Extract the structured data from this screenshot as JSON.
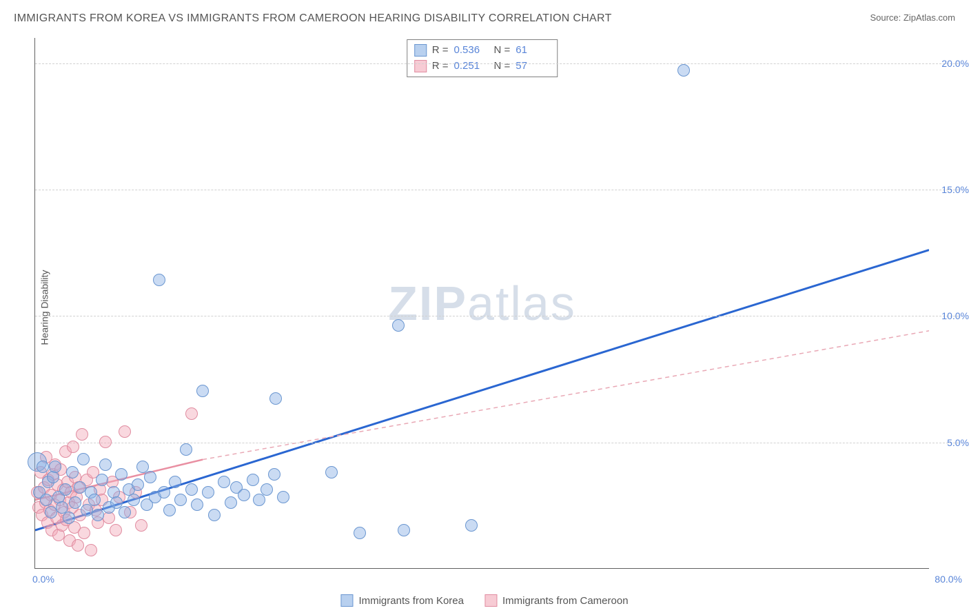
{
  "title": "IMMIGRANTS FROM KOREA VS IMMIGRANTS FROM CAMEROON HEARING DISABILITY CORRELATION CHART",
  "source_label": "Source: ",
  "source_value": "ZipAtlas.com",
  "ylabel": "Hearing Disability",
  "watermark_bold": "ZIP",
  "watermark_rest": "atlas",
  "chart": {
    "type": "scatter",
    "xlim": [
      0,
      80
    ],
    "ylim": [
      0,
      21
    ],
    "yticks": [
      5.0,
      10.0,
      15.0,
      20.0
    ],
    "ytick_labels": [
      "5.0%",
      "10.0%",
      "15.0%",
      "20.0%"
    ],
    "xtick_left": "0.0%",
    "xtick_right": "80.0%",
    "background_color": "#ffffff",
    "grid_color": "#d0d0d0",
    "colors": {
      "korea_fill": "rgba(137,176,229,0.45)",
      "korea_stroke": "#6a96d0",
      "cameroon_fill": "rgba(241,169,184,0.45)",
      "cameroon_stroke": "#e08ca0",
      "korea_line": "#2a66d1",
      "cameroon_line_solid": "#e98fa2",
      "cameroon_line_dash": "#e9a8b5",
      "tick_text": "#5985d8"
    },
    "marker_radius": 9,
    "series": {
      "korea": {
        "label": "Immigrants from Korea",
        "R": "0.536",
        "N": "61",
        "trend": {
          "x1": 0,
          "y1": 1.5,
          "x2": 80,
          "y2": 12.6
        },
        "points": [
          {
            "x": 0.2,
            "y": 4.2,
            "r": 14
          },
          {
            "x": 0.4,
            "y": 3.0
          },
          {
            "x": 0.7,
            "y": 4.0
          },
          {
            "x": 1.0,
            "y": 2.7
          },
          {
            "x": 1.2,
            "y": 3.4
          },
          {
            "x": 1.4,
            "y": 2.2
          },
          {
            "x": 1.6,
            "y": 3.6
          },
          {
            "x": 1.8,
            "y": 4.0
          },
          {
            "x": 2.1,
            "y": 2.8
          },
          {
            "x": 2.4,
            "y": 2.4
          },
          {
            "x": 2.7,
            "y": 3.1
          },
          {
            "x": 3.0,
            "y": 2.0
          },
          {
            "x": 3.3,
            "y": 3.8
          },
          {
            "x": 3.6,
            "y": 2.6
          },
          {
            "x": 4.0,
            "y": 3.2
          },
          {
            "x": 4.3,
            "y": 4.3
          },
          {
            "x": 4.6,
            "y": 2.3
          },
          {
            "x": 5.0,
            "y": 3.0
          },
          {
            "x": 5.3,
            "y": 2.7
          },
          {
            "x": 5.6,
            "y": 2.1
          },
          {
            "x": 6.0,
            "y": 3.5
          },
          {
            "x": 6.3,
            "y": 4.1
          },
          {
            "x": 6.6,
            "y": 2.4
          },
          {
            "x": 7.0,
            "y": 3.0
          },
          {
            "x": 7.3,
            "y": 2.6
          },
          {
            "x": 7.7,
            "y": 3.7
          },
          {
            "x": 8.0,
            "y": 2.2
          },
          {
            "x": 8.4,
            "y": 3.1
          },
          {
            "x": 8.8,
            "y": 2.7
          },
          {
            "x": 9.2,
            "y": 3.3
          },
          {
            "x": 9.6,
            "y": 4.0
          },
          {
            "x": 10.0,
            "y": 2.5
          },
          {
            "x": 10.3,
            "y": 3.6
          },
          {
            "x": 10.7,
            "y": 2.8
          },
          {
            "x": 11.1,
            "y": 11.4
          },
          {
            "x": 11.5,
            "y": 3.0
          },
          {
            "x": 12.0,
            "y": 2.3
          },
          {
            "x": 12.5,
            "y": 3.4
          },
          {
            "x": 13.0,
            "y": 2.7
          },
          {
            "x": 13.5,
            "y": 4.7
          },
          {
            "x": 14.0,
            "y": 3.1
          },
          {
            "x": 14.5,
            "y": 2.5
          },
          {
            "x": 15.0,
            "y": 7.0
          },
          {
            "x": 15.5,
            "y": 3.0
          },
          {
            "x": 16.9,
            "y": 3.4
          },
          {
            "x": 17.5,
            "y": 2.6
          },
          {
            "x": 18.0,
            "y": 3.2
          },
          {
            "x": 18.7,
            "y": 2.9
          },
          {
            "x": 19.5,
            "y": 3.5
          },
          {
            "x": 20.0,
            "y": 2.7
          },
          {
            "x": 20.7,
            "y": 3.1
          },
          {
            "x": 21.4,
            "y": 3.7
          },
          {
            "x": 21.5,
            "y": 6.7
          },
          {
            "x": 22.2,
            "y": 2.8
          },
          {
            "x": 26.5,
            "y": 3.8
          },
          {
            "x": 29.0,
            "y": 1.4
          },
          {
            "x": 32.5,
            "y": 9.6
          },
          {
            "x": 33.0,
            "y": 1.5
          },
          {
            "x": 39.0,
            "y": 1.7
          },
          {
            "x": 58.0,
            "y": 19.7
          },
          {
            "x": 16.0,
            "y": 2.1
          }
        ]
      },
      "cameroon": {
        "label": "Immigrants from Cameroon",
        "R": "0.251",
        "N": "57",
        "trend_solid": {
          "x1": 0,
          "y1": 2.7,
          "x2": 15,
          "y2": 4.3
        },
        "trend_dash": {
          "x1": 15,
          "y1": 4.3,
          "x2": 80,
          "y2": 9.4
        },
        "points": [
          {
            "x": 0.2,
            "y": 3.0
          },
          {
            "x": 0.3,
            "y": 2.4
          },
          {
            "x": 0.5,
            "y": 3.8
          },
          {
            "x": 0.6,
            "y": 2.1
          },
          {
            "x": 0.8,
            "y": 3.2
          },
          {
            "x": 0.9,
            "y": 2.6
          },
          {
            "x": 1.0,
            "y": 4.4
          },
          {
            "x": 1.1,
            "y": 1.8
          },
          {
            "x": 1.2,
            "y": 3.5
          },
          {
            "x": 1.3,
            "y": 2.3
          },
          {
            "x": 1.4,
            "y": 2.9
          },
          {
            "x": 1.5,
            "y": 1.5
          },
          {
            "x": 1.6,
            "y": 3.7
          },
          {
            "x": 1.7,
            "y": 2.5
          },
          {
            "x": 1.8,
            "y": 4.1
          },
          {
            "x": 1.9,
            "y": 2.0
          },
          {
            "x": 2.0,
            "y": 3.3
          },
          {
            "x": 2.1,
            "y": 1.3
          },
          {
            "x": 2.2,
            "y": 2.7
          },
          {
            "x": 2.3,
            "y": 3.9
          },
          {
            "x": 2.4,
            "y": 1.7
          },
          {
            "x": 2.5,
            "y": 3.1
          },
          {
            "x": 2.6,
            "y": 2.2
          },
          {
            "x": 2.7,
            "y": 4.6
          },
          {
            "x": 2.8,
            "y": 1.9
          },
          {
            "x": 2.9,
            "y": 3.4
          },
          {
            "x": 3.0,
            "y": 2.6
          },
          {
            "x": 3.1,
            "y": 1.1
          },
          {
            "x": 3.2,
            "y": 3.0
          },
          {
            "x": 3.3,
            "y": 2.4
          },
          {
            "x": 3.4,
            "y": 4.8
          },
          {
            "x": 3.5,
            "y": 1.6
          },
          {
            "x": 3.6,
            "y": 3.6
          },
          {
            "x": 3.7,
            "y": 2.8
          },
          {
            "x": 3.8,
            "y": 0.9
          },
          {
            "x": 3.9,
            "y": 3.2
          },
          {
            "x": 4.0,
            "y": 2.1
          },
          {
            "x": 4.2,
            "y": 5.3
          },
          {
            "x": 4.4,
            "y": 1.4
          },
          {
            "x": 4.6,
            "y": 3.5
          },
          {
            "x": 4.8,
            "y": 2.5
          },
          {
            "x": 5.0,
            "y": 0.7
          },
          {
            "x": 5.2,
            "y": 3.8
          },
          {
            "x": 5.4,
            "y": 2.3
          },
          {
            "x": 5.6,
            "y": 1.8
          },
          {
            "x": 5.8,
            "y": 3.1
          },
          {
            "x": 6.0,
            "y": 2.7
          },
          {
            "x": 6.3,
            "y": 5.0
          },
          {
            "x": 6.6,
            "y": 2.0
          },
          {
            "x": 6.9,
            "y": 3.4
          },
          {
            "x": 7.2,
            "y": 1.5
          },
          {
            "x": 7.5,
            "y": 2.8
          },
          {
            "x": 8.0,
            "y": 5.4
          },
          {
            "x": 8.5,
            "y": 2.2
          },
          {
            "x": 9.0,
            "y": 3.0
          },
          {
            "x": 9.5,
            "y": 1.7
          },
          {
            "x": 14.0,
            "y": 6.1
          }
        ]
      }
    }
  },
  "stats_legend": {
    "r_label": "R =",
    "n_label": "N ="
  }
}
